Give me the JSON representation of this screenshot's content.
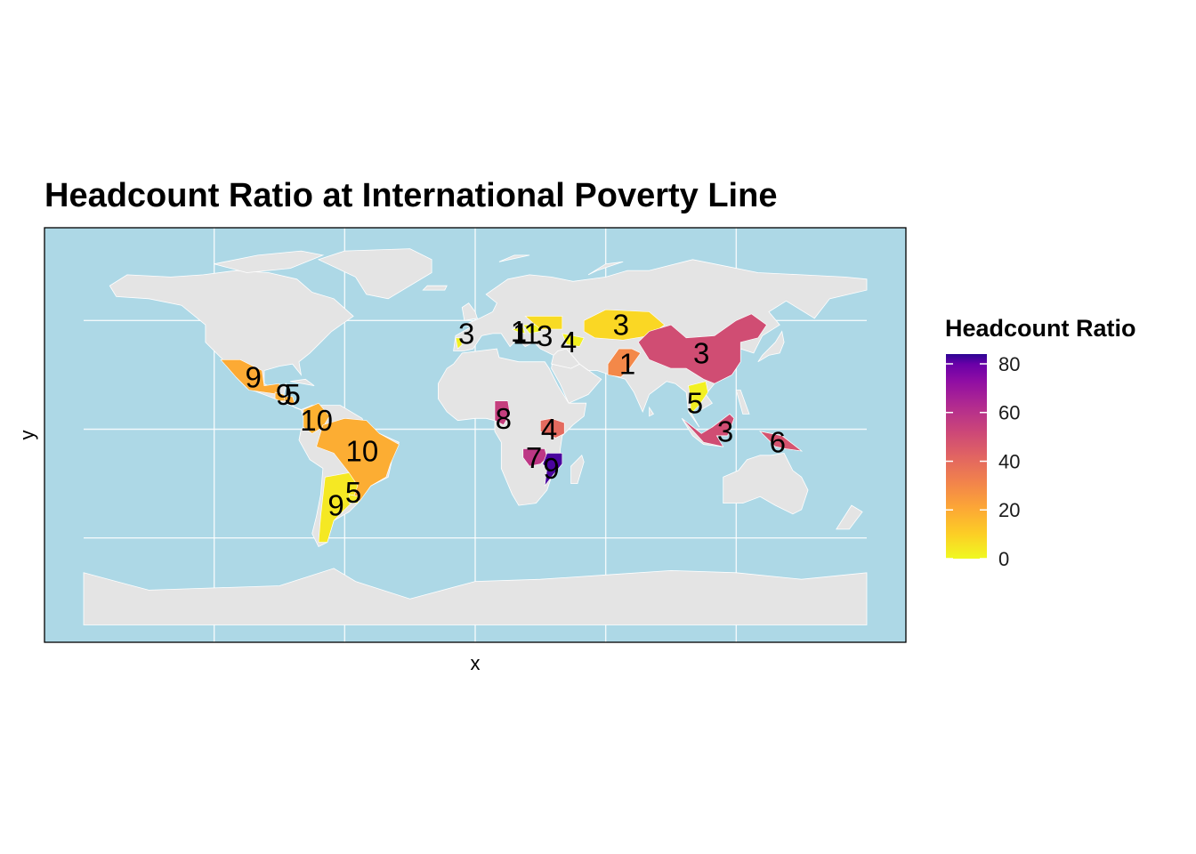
{
  "title": "Headcount Ratio at International Poverty Line",
  "xlabel": "x",
  "ylabel": "y",
  "colors": {
    "ocean": "#add8e6",
    "land": "#e4e4e4",
    "border": "#ffffff",
    "panel_border": "#000000"
  },
  "legend": {
    "title": "Headcount Ratio",
    "ticks": [
      "80",
      "60",
      "40",
      "20",
      "0"
    ],
    "tick_values": [
      80,
      60,
      40,
      20,
      0
    ],
    "range": [
      0,
      84
    ],
    "palette": "plasma (reversed)"
  },
  "chart_data": {
    "type": "choropleth",
    "title": "Headcount Ratio at International Poverty Line",
    "xlabel": "x",
    "ylabel": "y",
    "legend_title": "Headcount Ratio",
    "legend_placement": "right",
    "grid": true,
    "value_range": [
      0,
      84
    ],
    "regions": [
      {
        "label": "3",
        "lon": -4,
        "lat": 44,
        "value": 2
      },
      {
        "label": "1",
        "lon": 20,
        "lat": 45,
        "value": 1
      },
      {
        "label": "1",
        "lon": 21,
        "lat": 44,
        "value": 1
      },
      {
        "label": "1",
        "lon": 26,
        "lat": 44,
        "value": 1
      },
      {
        "label": "3",
        "lon": 32,
        "lat": 43,
        "value": 7
      },
      {
        "label": "4",
        "lon": 43,
        "lat": 40,
        "value": 2
      },
      {
        "label": "3",
        "lon": 67,
        "lat": 48,
        "value": 8
      },
      {
        "label": "3",
        "lon": 104,
        "lat": 35,
        "value": 50
      },
      {
        "label": "1",
        "lon": 70,
        "lat": 30,
        "value": 30
      },
      {
        "label": "9",
        "lon": -102,
        "lat": 24,
        "value": 20
      },
      {
        "label": "9",
        "lon": -88,
        "lat": 16,
        "value": 19
      },
      {
        "label": "5",
        "lon": -84,
        "lat": 16,
        "value": 20
      },
      {
        "label": "10",
        "lon": -73,
        "lat": 4,
        "value": 18
      },
      {
        "label": "10",
        "lon": -52,
        "lat": -10,
        "value": 19
      },
      {
        "label": "9",
        "lon": -64,
        "lat": -35,
        "value": 4
      },
      {
        "label": "5",
        "lon": -56,
        "lat": -29,
        "value": 3
      },
      {
        "label": "8",
        "lon": 13,
        "lat": 5,
        "value": 55
      },
      {
        "label": "4",
        "lon": 34,
        "lat": 0,
        "value": 40
      },
      {
        "label": "7",
        "lon": 27,
        "lat": -13,
        "value": 58
      },
      {
        "label": "9",
        "lon": 35,
        "lat": -18,
        "value": 82
      },
      {
        "label": "5",
        "lon": 101,
        "lat": 12,
        "value": 2
      },
      {
        "label": "3",
        "lon": 115,
        "lat": -1,
        "value": 50
      },
      {
        "label": "6",
        "lon": 139,
        "lat": -6,
        "value": 48
      }
    ]
  }
}
